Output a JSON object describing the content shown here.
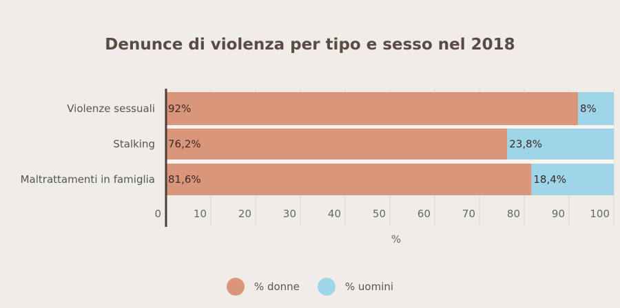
{
  "chart_data": {
    "type": "bar",
    "orientation": "horizontal",
    "stacked": true,
    "title": "Denunce di violenza per tipo e sesso nel 2018",
    "xlabel": "%",
    "ylabel": "",
    "xlim": [
      0,
      100
    ],
    "xticks": [
      0,
      10,
      20,
      30,
      40,
      50,
      60,
      70,
      80,
      90,
      100
    ],
    "categories": [
      "Violenze sessuali",
      "Stalking",
      "Maltrattamenti in famiglia"
    ],
    "series": [
      {
        "name": "% donne",
        "color": "#d9967b",
        "values": [
          92,
          76.2,
          81.6
        ],
        "labels": [
          "92%",
          "76,2%",
          "81,6%"
        ]
      },
      {
        "name": "% uomini",
        "color": "#9fd5e8",
        "values": [
          8,
          23.8,
          18.4
        ],
        "labels": [
          "8%",
          "23,8%",
          "18,4%"
        ]
      }
    ],
    "grid": true,
    "legend": "bottom-center"
  }
}
